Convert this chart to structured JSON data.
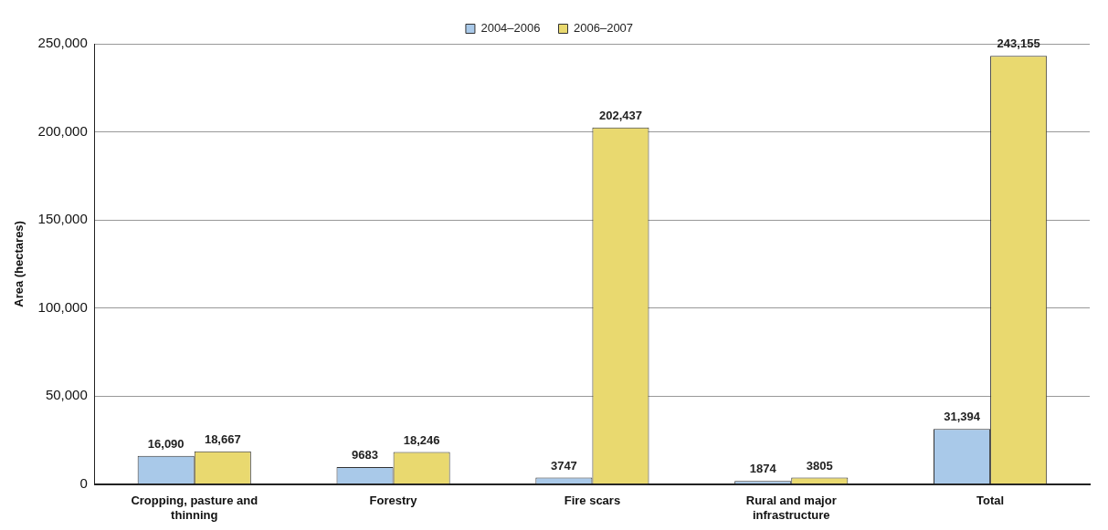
{
  "chart_data": {
    "type": "bar",
    "ylabel": "Area (hectares)",
    "categories": [
      "Cropping, pasture and thinning",
      "Forestry",
      "Fire scars",
      "Rural and major infrastructure",
      "Total"
    ],
    "series": [
      {
        "name": "2004–2006",
        "color": "#a9c9e9",
        "values": [
          16090,
          9683,
          3747,
          1874,
          31394
        ],
        "value_labels": [
          "16,090",
          "9683",
          "3747",
          "1874",
          "31,394"
        ]
      },
      {
        "name": "2006–2007",
        "color": "#e9d96f",
        "values": [
          18667,
          18246,
          202437,
          3805,
          243155
        ],
        "value_labels": [
          "18,667",
          "18,246",
          "202,437",
          "3805",
          "243,155"
        ]
      }
    ],
    "ylim": [
      0,
      250000
    ],
    "yticks": [
      0,
      {
        "value": 50000,
        "label": "50,000"
      },
      {
        "value": 100000,
        "label": "100,000"
      },
      {
        "value": 150000,
        "label": "150,000"
      },
      {
        "value": 200000,
        "label": "200,000"
      },
      {
        "value": 250000,
        "label": "250,000"
      }
    ],
    "grid": "y",
    "legend": "top"
  }
}
